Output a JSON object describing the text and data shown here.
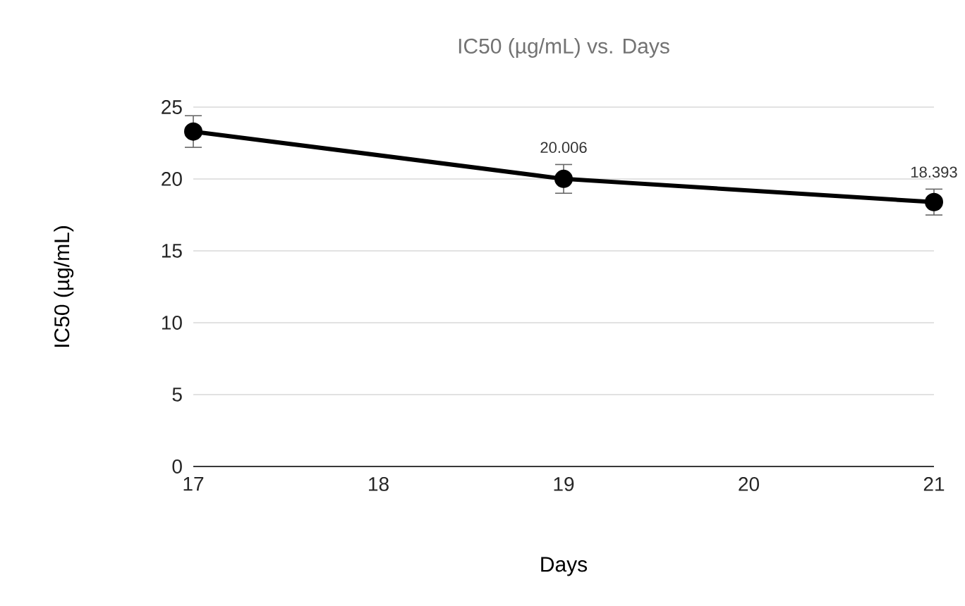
{
  "chart_data": {
    "type": "line",
    "title": "IC50 (µg/mL) vs. Days",
    "xlabel": "Days",
    "ylabel": "IC50 (µg/mL)",
    "x": [
      17,
      19,
      21
    ],
    "series": [
      {
        "color": "#000000",
        "values": [
          23.3,
          20.006,
          18.393
        ],
        "errors": [
          1.1,
          1.0,
          0.9
        ],
        "value_labels": [
          null,
          "20.006",
          "18.393"
        ]
      }
    ],
    "xlim": [
      17,
      21
    ],
    "ylim": [
      0,
      25
    ],
    "xticks": [
      17,
      18,
      19,
      20,
      21
    ],
    "yticks": [
      0,
      5,
      10,
      15,
      20,
      25
    ],
    "grid": "y",
    "marker": "circle",
    "line_style": "solid"
  }
}
